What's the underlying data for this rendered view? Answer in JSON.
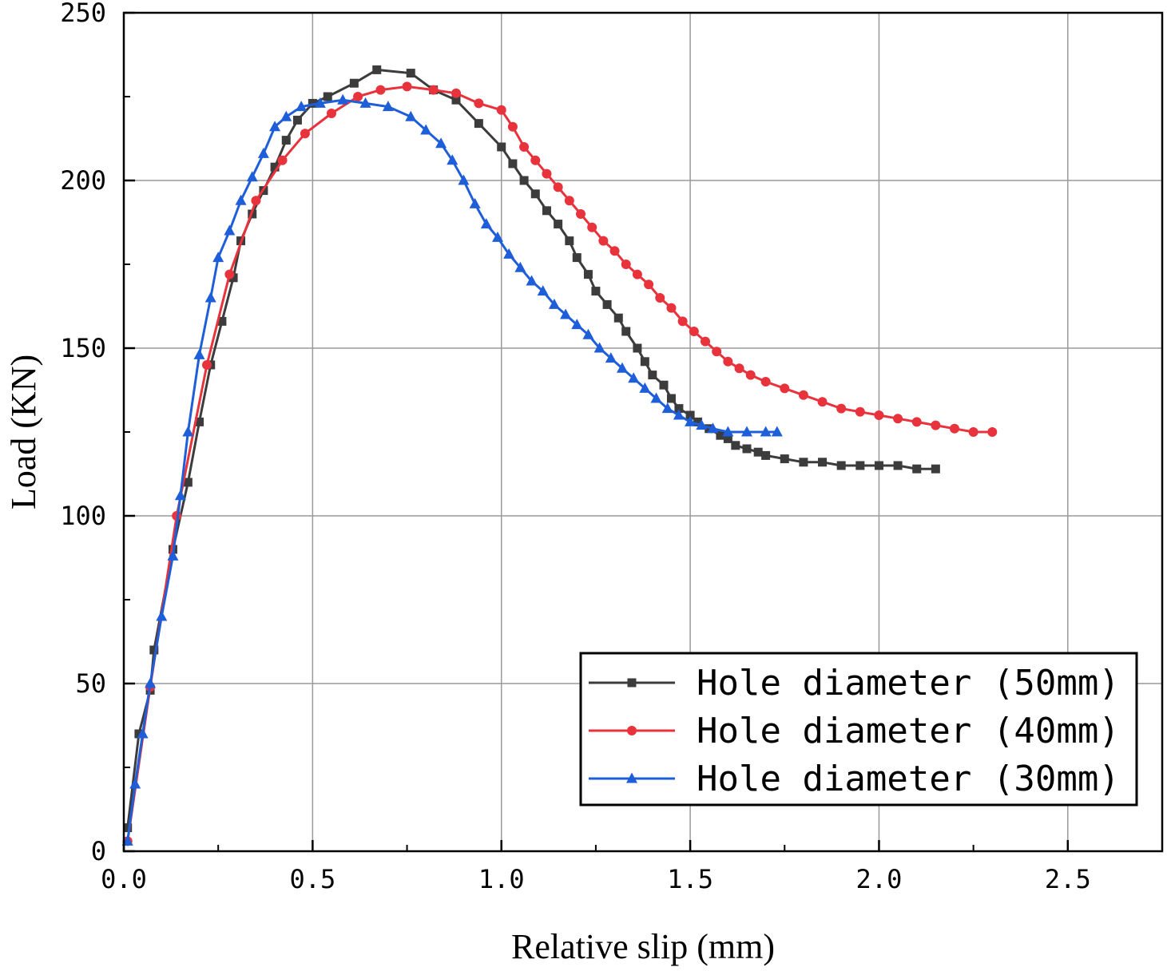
{
  "chart_data": {
    "type": "line",
    "title": "",
    "xlabel": "Relative slip (mm)",
    "ylabel": "Load (KN)",
    "xlim": [
      0,
      2.75
    ],
    "ylim": [
      0,
      250
    ],
    "xticks": [
      0,
      0.5,
      1.0,
      1.5,
      2.0,
      2.5
    ],
    "xtick_labels": [
      "0.0",
      "0.5",
      "1.0",
      "1.5",
      "2.0",
      "2.5"
    ],
    "yticks": [
      0,
      50,
      100,
      150,
      200,
      250
    ],
    "ytick_labels": [
      "0",
      "50",
      "100",
      "150",
      "200",
      "250"
    ],
    "grid": true,
    "legend_position": "bottom-right",
    "series": [
      {
        "name": "Hole diameter (50mm)",
        "color": "#3c3c3c",
        "marker": "square",
        "x": [
          0.01,
          0.04,
          0.07,
          0.08,
          0.13,
          0.17,
          0.2,
          0.23,
          0.26,
          0.29,
          0.31,
          0.34,
          0.37,
          0.4,
          0.43,
          0.46,
          0.5,
          0.54,
          0.61,
          0.67,
          0.76,
          0.82,
          0.88,
          0.94,
          1.0,
          1.03,
          1.06,
          1.09,
          1.12,
          1.15,
          1.18,
          1.2,
          1.23,
          1.25,
          1.28,
          1.31,
          1.33,
          1.36,
          1.38,
          1.4,
          1.43,
          1.45,
          1.47,
          1.5,
          1.52,
          1.55,
          1.58,
          1.6,
          1.62,
          1.65,
          1.68,
          1.7,
          1.75,
          1.8,
          1.85,
          1.9,
          1.95,
          2.0,
          2.05,
          2.1,
          2.15
        ],
        "y": [
          7,
          35,
          48,
          60,
          90,
          110,
          128,
          145,
          158,
          171,
          182,
          190,
          197,
          204,
          212,
          218,
          223,
          225,
          229,
          233,
          232,
          227,
          224,
          217,
          210,
          205,
          200,
          196,
          191,
          187,
          182,
          177,
          172,
          167,
          163,
          159,
          155,
          150,
          146,
          142,
          139,
          135,
          132,
          130,
          128,
          126,
          124,
          123,
          121,
          120,
          119,
          118,
          117,
          116,
          116,
          115,
          115,
          115,
          115,
          114,
          114
        ]
      },
      {
        "name": "Hole diameter (40mm)",
        "color": "#e8323c",
        "marker": "circle",
        "x": [
          0.01,
          0.07,
          0.14,
          0.22,
          0.28,
          0.35,
          0.42,
          0.48,
          0.55,
          0.62,
          0.68,
          0.75,
          0.82,
          0.88,
          0.94,
          1.0,
          1.03,
          1.06,
          1.09,
          1.12,
          1.15,
          1.18,
          1.21,
          1.24,
          1.27,
          1.3,
          1.33,
          1.36,
          1.39,
          1.42,
          1.45,
          1.48,
          1.51,
          1.54,
          1.57,
          1.6,
          1.63,
          1.66,
          1.7,
          1.75,
          1.8,
          1.85,
          1.9,
          1.95,
          2.0,
          2.05,
          2.1,
          2.15,
          2.2,
          2.25,
          2.3
        ],
        "y": [
          3,
          49,
          100,
          145,
          172,
          194,
          206,
          214,
          220,
          225,
          227,
          228,
          227,
          226,
          223,
          221,
          216,
          210,
          206,
          202,
          198,
          194,
          190,
          186,
          182,
          179,
          175,
          172,
          169,
          165,
          162,
          158,
          155,
          152,
          149,
          146,
          144,
          142,
          140,
          138,
          136,
          134,
          132,
          131,
          130,
          129,
          128,
          127,
          126,
          125,
          125
        ]
      },
      {
        "name": "Hole diameter (30mm)",
        "color": "#1e5ed8",
        "marker": "triangle",
        "x": [
          0.01,
          0.03,
          0.05,
          0.07,
          0.1,
          0.13,
          0.15,
          0.17,
          0.2,
          0.23,
          0.25,
          0.28,
          0.31,
          0.34,
          0.37,
          0.4,
          0.43,
          0.47,
          0.52,
          0.58,
          0.64,
          0.7,
          0.76,
          0.8,
          0.84,
          0.87,
          0.9,
          0.93,
          0.96,
          0.99,
          1.02,
          1.05,
          1.08,
          1.11,
          1.14,
          1.17,
          1.2,
          1.23,
          1.26,
          1.29,
          1.32,
          1.35,
          1.38,
          1.41,
          1.44,
          1.47,
          1.5,
          1.53,
          1.56,
          1.6,
          1.65,
          1.7,
          1.73
        ],
        "y": [
          3,
          20,
          35,
          50,
          70,
          88,
          106,
          125,
          148,
          165,
          177,
          185,
          194,
          201,
          208,
          216,
          219,
          222,
          223,
          224,
          223,
          222,
          219,
          215,
          211,
          206,
          200,
          193,
          187,
          183,
          178,
          174,
          170,
          167,
          163,
          160,
          157,
          154,
          150,
          147,
          144,
          141,
          138,
          135,
          132,
          130,
          128,
          127,
          126,
          125,
          125,
          125,
          125
        ]
      }
    ]
  }
}
